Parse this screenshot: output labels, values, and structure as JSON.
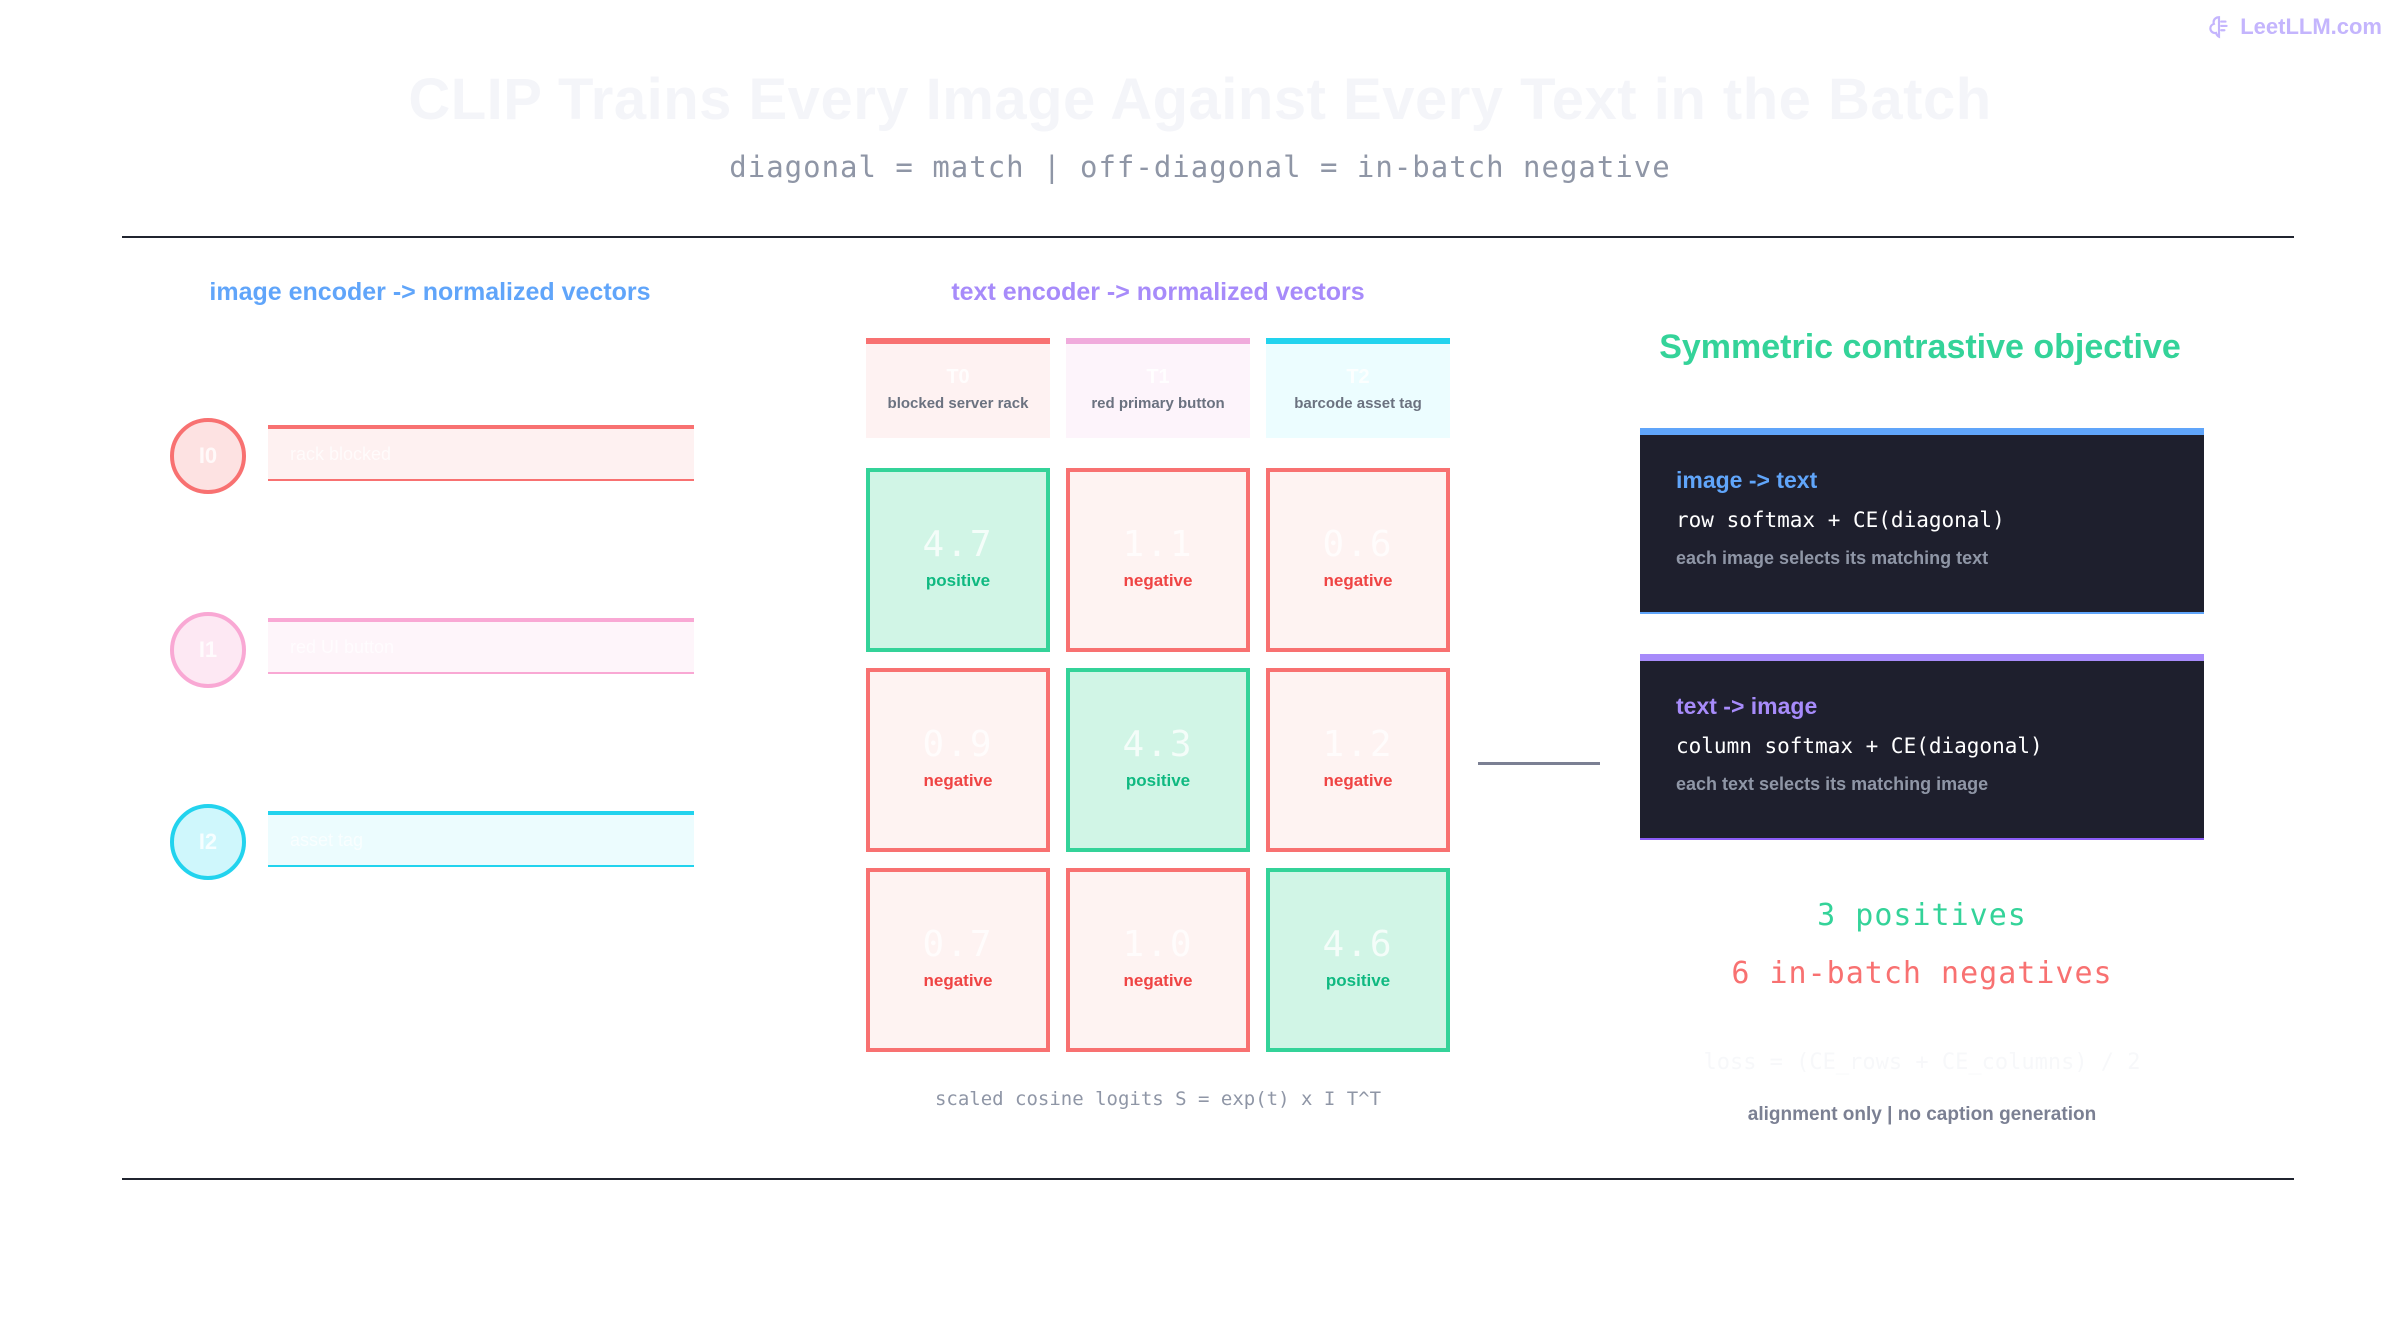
{
  "brand": {
    "name": "LeetLLM.com",
    "icon": "brain-logo-icon"
  },
  "title": "CLIP Trains Every Image Against Every Text in the Batch",
  "subtitle": "diagonal = match | off-diagonal = in-batch negative",
  "image_encoder": {
    "heading": "image encoder -> normalized vectors",
    "items": [
      {
        "id": "I0",
        "label": "rack blocked",
        "color": "#f87171",
        "fill": "#fde2e2",
        "bar_fill": "#fef1f1"
      },
      {
        "id": "I1",
        "label": "red UI button",
        "color": "#f9a8d4",
        "fill": "#fde8f3",
        "bar_fill": "#fef5fa"
      },
      {
        "id": "I2",
        "label": "asset tag",
        "color": "#22d3ee",
        "fill": "#cff7fc",
        "bar_fill": "#ecfcfe"
      }
    ]
  },
  "text_encoder": {
    "heading": "text encoder -> normalized vectors",
    "items": [
      {
        "id": "T0",
        "caption": "blocked server rack",
        "color": "#f87171",
        "fill": "#fef2f2"
      },
      {
        "id": "T1",
        "caption": "red primary button",
        "color": "#f0abdc",
        "fill": "#fdf4fb"
      },
      {
        "id": "T2",
        "caption": "barcode asset tag",
        "color": "#22d3ee",
        "fill": "#ecfdff"
      }
    ]
  },
  "matrix": {
    "rows": [
      [
        {
          "value": "4.7",
          "label": "positive",
          "kind": "pos"
        },
        {
          "value": "1.1",
          "label": "negative",
          "kind": "neg"
        },
        {
          "value": "0.6",
          "label": "negative",
          "kind": "neg"
        }
      ],
      [
        {
          "value": "0.9",
          "label": "negative",
          "kind": "neg"
        },
        {
          "value": "4.3",
          "label": "positive",
          "kind": "pos"
        },
        {
          "value": "1.2",
          "label": "negative",
          "kind": "neg"
        }
      ],
      [
        {
          "value": "0.7",
          "label": "negative",
          "kind": "neg"
        },
        {
          "value": "1.0",
          "label": "negative",
          "kind": "neg"
        },
        {
          "value": "4.6",
          "label": "positive",
          "kind": "pos"
        }
      ]
    ],
    "caption": "scaled cosine logits S = exp(t) x I T^T"
  },
  "objective": {
    "title": "Symmetric contrastive objective",
    "cards": [
      {
        "title": "image -> text",
        "formula": "row softmax + CE(diagonal)",
        "desc": "each image selects its matching text",
        "accent": "#60a5fa",
        "bottom": "#60a5fa"
      },
      {
        "title": "text -> image",
        "formula": "column softmax + CE(diagonal)",
        "desc": "each text selects its matching image",
        "accent": "#a78bfa",
        "bottom": "#8b5cf6"
      }
    ],
    "positives": "3 positives",
    "negatives": "6 in-batch negatives",
    "loss": "loss = (CE_rows + CE_columns) / 2",
    "note": "alignment only | no caption generation"
  },
  "colors": {
    "image_heading": "#60a5fa",
    "text_heading": "#a78bfa"
  }
}
